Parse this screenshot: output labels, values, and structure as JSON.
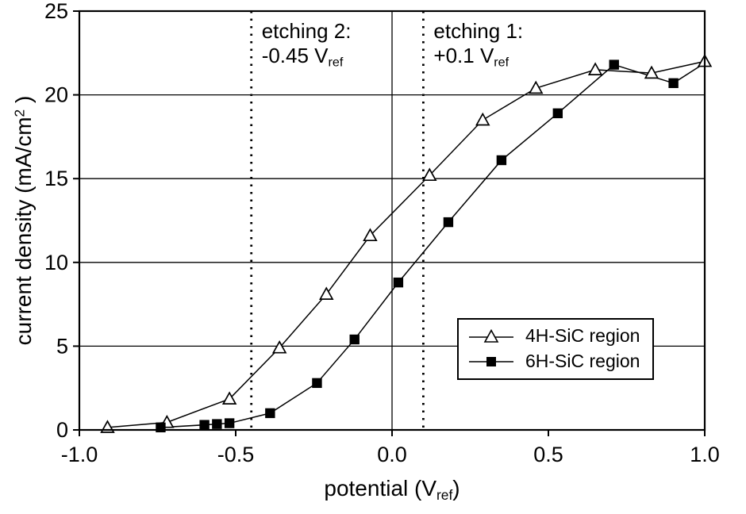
{
  "figure": {
    "background": "#ffffff",
    "line_color": "#000000"
  },
  "chart_data": {
    "type": "line",
    "title": "",
    "xlabel": "potential (Vref)",
    "ylabel": "current density (mA/cm2 )",
    "xlabel_parts": {
      "pre": "potential (V",
      "sub": "ref",
      "post": ")"
    },
    "ylabel_parts": {
      "pre": "current density (mA/cm",
      "sup": "2",
      "post": " )"
    },
    "xlim": [
      -1.0,
      1.0
    ],
    "ylim": [
      0,
      25
    ],
    "xticks": [
      -1.0,
      -0.5,
      0.0,
      0.5,
      1.0
    ],
    "xtick_labels": [
      "-1.0",
      "-0.5",
      "0.0",
      "0.5",
      "1.0"
    ],
    "yticks": [
      0,
      5,
      10,
      15,
      20,
      25
    ],
    "ytick_labels": [
      "0",
      "5",
      "10",
      "15",
      "20",
      "25"
    ],
    "grid": {
      "horizontal": [
        5,
        10,
        15,
        20
      ],
      "vertical_solid": [
        0.0
      ]
    },
    "annotations": [
      {
        "line1": "etching 2:",
        "line2_main": "-0.45 V",
        "line2_sub": "ref",
        "x": -0.45,
        "style": "dotted"
      },
      {
        "line1": "etching 1:",
        "line2_main": "+0.1 V",
        "line2_sub": "ref",
        "x": 0.1,
        "style": "dotted"
      }
    ],
    "legend": {
      "position": "right-lower",
      "border": true
    },
    "series": [
      {
        "name": "4H-SiC region",
        "marker": "triangle-open",
        "points": [
          [
            -0.91,
            0.15
          ],
          [
            -0.72,
            0.45
          ],
          [
            -0.52,
            1.85
          ],
          [
            -0.36,
            4.9
          ],
          [
            -0.21,
            8.1
          ],
          [
            -0.07,
            11.6
          ],
          [
            0.12,
            15.2
          ],
          [
            0.29,
            18.5
          ],
          [
            0.46,
            20.4
          ],
          [
            0.65,
            21.5
          ],
          [
            0.83,
            21.3
          ],
          [
            1.0,
            22.0
          ]
        ],
        "line_end": []
      },
      {
        "name": "6H-SiC region",
        "marker": "square-filled",
        "points": [
          [
            -0.74,
            0.15
          ],
          [
            -0.6,
            0.3
          ],
          [
            -0.56,
            0.35
          ],
          [
            -0.52,
            0.4
          ],
          [
            -0.39,
            1.0
          ],
          [
            -0.24,
            2.8
          ],
          [
            -0.12,
            5.4
          ],
          [
            0.02,
            8.8
          ],
          [
            0.18,
            12.4
          ],
          [
            0.35,
            16.1
          ],
          [
            0.53,
            18.9
          ],
          [
            0.71,
            21.8
          ],
          [
            0.9,
            20.7
          ]
        ],
        "line_end": [
          [
            1.0,
            21.9
          ]
        ]
      }
    ]
  }
}
